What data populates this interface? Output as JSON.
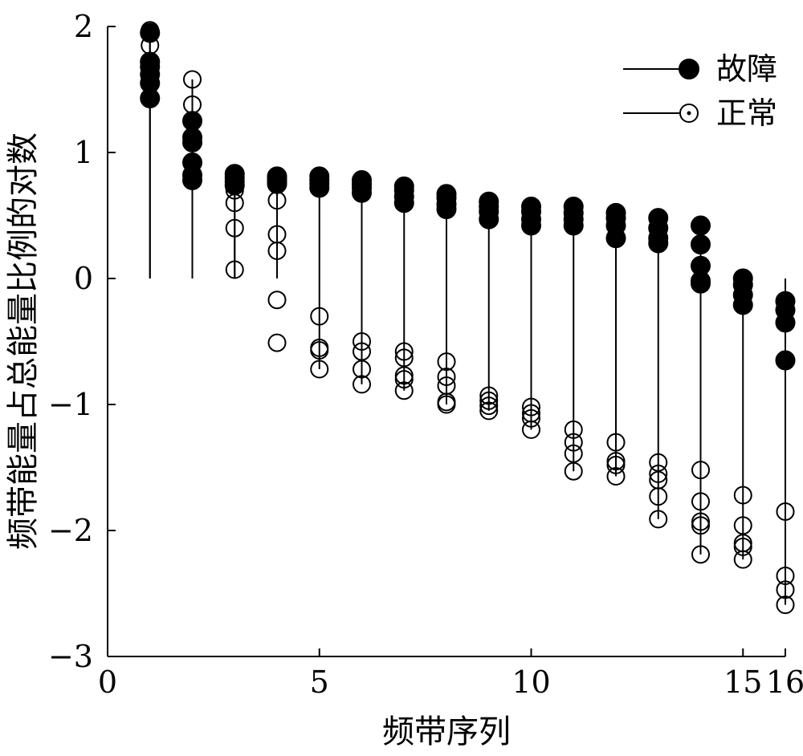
{
  "chart_data": {
    "type": "scatter",
    "subtype": "stem",
    "xlabel": "频带序列",
    "ylabel": "频带能量占总能量比例的对数",
    "xlim": [
      0,
      16
    ],
    "ylim": [
      -3,
      2
    ],
    "xticks": [
      {
        "value": 0,
        "label": "0"
      },
      {
        "value": 5,
        "label": "5"
      },
      {
        "value": 10,
        "label": "10"
      },
      {
        "value": 15,
        "label": "15"
      },
      {
        "value": 16,
        "label": "16"
      }
    ],
    "yticks": [
      {
        "value": 2,
        "label": "2"
      },
      {
        "value": 1,
        "label": "1"
      },
      {
        "value": 0,
        "label": "0"
      },
      {
        "value": -1,
        "label": "−1"
      },
      {
        "value": -2,
        "label": "−2"
      },
      {
        "value": -3,
        "label": "−3"
      }
    ],
    "legend_position": "top-right",
    "marker_color": "#000000",
    "series": [
      {
        "name": "故障",
        "marker": "filled-circle",
        "points": [
          {
            "x": 1,
            "values": [
              1.95,
              1.72,
              1.68,
              1.62,
              1.55,
              1.43
            ]
          },
          {
            "x": 2,
            "values": [
              1.25,
              1.12,
              1.08,
              0.92,
              0.82,
              0.78
            ]
          },
          {
            "x": 3,
            "values": [
              0.83,
              0.8,
              0.77,
              0.74
            ]
          },
          {
            "x": 4,
            "values": [
              0.81,
              0.79,
              0.77,
              0.75
            ]
          },
          {
            "x": 5,
            "values": [
              0.81,
              0.78,
              0.75,
              0.72
            ]
          },
          {
            "x": 6,
            "values": [
              0.78,
              0.75,
              0.72,
              0.68
            ]
          },
          {
            "x": 7,
            "values": [
              0.73,
              0.7,
              0.65,
              0.6
            ]
          },
          {
            "x": 8,
            "values": [
              0.67,
              0.64,
              0.59,
              0.55
            ]
          },
          {
            "x": 9,
            "values": [
              0.61,
              0.57,
              0.53,
              0.47
            ]
          },
          {
            "x": 10,
            "values": [
              0.57,
              0.53,
              0.47,
              0.42
            ]
          },
          {
            "x": 11,
            "values": [
              0.57,
              0.52,
              0.47,
              0.42
            ]
          },
          {
            "x": 12,
            "values": [
              0.52,
              0.48,
              0.42,
              0.32
            ]
          },
          {
            "x": 13,
            "values": [
              0.48,
              0.4,
              0.32,
              0.28
            ]
          },
          {
            "x": 14,
            "values": [
              0.42,
              0.27,
              0.1,
              -0.02,
              -0.04
            ]
          },
          {
            "x": 15,
            "values": [
              0.0,
              -0.05,
              -0.13,
              -0.21
            ]
          },
          {
            "x": 16,
            "values": [
              -0.18,
              -0.25,
              -0.35,
              -0.65
            ]
          }
        ]
      },
      {
        "name": "正常",
        "marker": "open-circle",
        "points": [
          {
            "x": 1,
            "values": [
              1.97,
              1.85
            ]
          },
          {
            "x": 2,
            "values": [
              1.58,
              1.38,
              1.25,
              1.1
            ]
          },
          {
            "x": 3,
            "values": [
              0.7,
              0.6,
              0.4,
              0.07
            ]
          },
          {
            "x": 4,
            "values": [
              0.62,
              0.35,
              0.22,
              -0.17,
              -0.51
            ]
          },
          {
            "x": 5,
            "values": [
              -0.3,
              -0.55,
              -0.57,
              -0.72
            ]
          },
          {
            "x": 6,
            "values": [
              -0.5,
              -0.58,
              -0.72,
              -0.84
            ]
          },
          {
            "x": 7,
            "values": [
              -0.58,
              -0.63,
              -0.77,
              -0.8,
              -0.89
            ]
          },
          {
            "x": 8,
            "values": [
              -0.66,
              -0.78,
              -0.85,
              -0.98,
              -1.0
            ]
          },
          {
            "x": 9,
            "values": [
              -0.93,
              -0.97,
              -1.01,
              -1.05
            ]
          },
          {
            "x": 10,
            "values": [
              -1.02,
              -1.07,
              -1.11,
              -1.2
            ]
          },
          {
            "x": 11,
            "values": [
              -1.2,
              -1.3,
              -1.39,
              -1.53
            ]
          },
          {
            "x": 12,
            "values": [
              -1.3,
              -1.45,
              -1.48,
              -1.57
            ]
          },
          {
            "x": 13,
            "values": [
              -1.46,
              -1.55,
              -1.6,
              -1.73,
              -1.91
            ]
          },
          {
            "x": 14,
            "values": [
              -1.52,
              -1.77,
              -1.93,
              -1.96,
              -2.19
            ]
          },
          {
            "x": 15,
            "values": [
              -1.72,
              -1.96,
              -2.1,
              -2.13,
              -2.23
            ]
          },
          {
            "x": 16,
            "values": [
              -1.85,
              -2.36,
              -2.47,
              -2.59
            ]
          }
        ]
      }
    ]
  }
}
